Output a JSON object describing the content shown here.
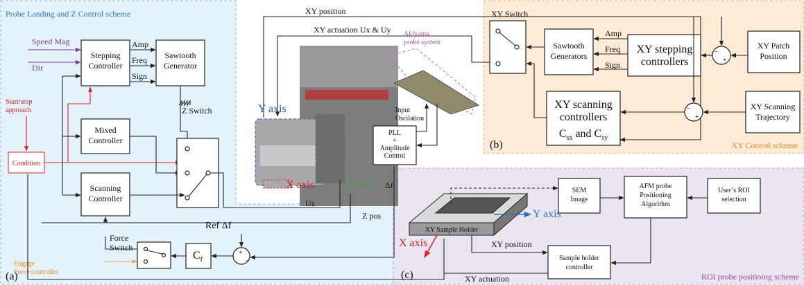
{
  "panel_a": {
    "title": "Probe Landing and Z Control scheme",
    "label": "(a)",
    "speed_mag": "Speed Mag",
    "dir": "Dir",
    "stepping_controller": [
      "Stepping",
      "Controller"
    ],
    "amp": "Amp",
    "freq": "Freq",
    "sign": "Sign",
    "sawtooth_generator": [
      "Sawtooth",
      "Generator"
    ],
    "start_stop": [
      "Start/stop",
      "approach"
    ],
    "condition": "Condition",
    "mixed_controller": [
      "Mixed",
      "Controller"
    ],
    "z_switch": "Z Switch",
    "scanning_controller": [
      "Scanning",
      "Controller"
    ],
    "force_switch": [
      "Force",
      "Switch"
    ],
    "engage": [
      "Engage",
      "Force controller"
    ],
    "ref": "Ref Δf",
    "cf": [
      "C",
      "f"
    ],
    "uz": "Uz",
    "z_pos": "Z pos"
  },
  "center": {
    "xy_position": "XY position",
    "xy_actuation": "XY actuation  Ux & Uy",
    "akiyama": [
      "Akiyama",
      "probe system"
    ],
    "y_axis": "Y axis",
    "x_axis": "X axis",
    "z_axis": "Z axis",
    "input_osc": [
      "Input",
      "Oscilation"
    ],
    "pll": [
      "PLL",
      "+",
      "Amplitude",
      "Control"
    ],
    "delta_f": "Δf"
  },
  "panel_b": {
    "label": "(b)",
    "title": "XY Control scheme",
    "xy_switch": "XY Switch",
    "sawtooth_generators": [
      "Sawtooth",
      "Generators"
    ],
    "amp": "Amp",
    "freq": "Freq",
    "sign": "Sign",
    "xy_stepping": [
      "XY stepping",
      "controllers"
    ],
    "xy_patch": [
      "XY Patch",
      "Position"
    ],
    "xy_scanning": [
      "XY scanning",
      "controllers"
    ],
    "csx_csy": [
      "C",
      "sx",
      " and ",
      "C",
      "sy"
    ],
    "xy_trajectory": [
      "XY Scanning",
      "Trajectory"
    ]
  },
  "panel_c": {
    "label": "(c)",
    "title": "ROI probe positioing scheme",
    "sample_holder": "XY Sample Holder",
    "y_axis": "Y axis",
    "x_axis": "X axis",
    "sem_image": [
      "SEM",
      "Image"
    ],
    "afm": [
      "AFM probe",
      "Positioning",
      "Algorithm"
    ],
    "user_roi": [
      "User’s ROI",
      "selection"
    ],
    "xy_position": "XY position",
    "holder_controller": [
      "Sample holder",
      "controller"
    ],
    "xy_actuation": "XY actuation"
  }
}
